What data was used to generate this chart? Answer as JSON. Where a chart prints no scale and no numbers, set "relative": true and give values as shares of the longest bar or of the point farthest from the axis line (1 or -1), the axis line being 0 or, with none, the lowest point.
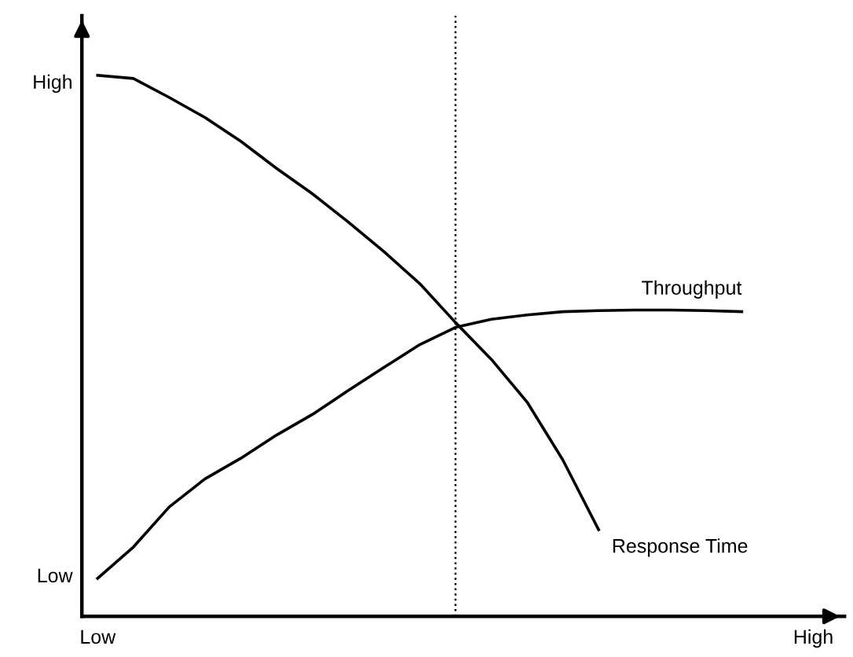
{
  "chart_data": {
    "type": "line",
    "relative": true,
    "categories": [
      "Low",
      null,
      null,
      null,
      null,
      null,
      null,
      null,
      null,
      null,
      null,
      null,
      null,
      null,
      null,
      null,
      null,
      null,
      null,
      null,
      "High"
    ],
    "annotations": [
      "High",
      "Low"
    ],
    "marker": "none",
    "line_style": "solid",
    "series": [
      {
        "name": "Response Time",
        "color": "#000000",
        "values": [
          1.0,
          0.994,
          0.959,
          0.922,
          0.878,
          0.828,
          0.781,
          0.729,
          0.674,
          0.615,
          0.543,
          0.475,
          0.396,
          0.289,
          0.16,
          null,
          null,
          null,
          null,
          null,
          null
        ]
      },
      {
        "name": "Throughput",
        "color": "#000000",
        "values": [
          0.07,
          0.128,
          0.202,
          0.254,
          0.292,
          0.335,
          0.373,
          0.417,
          0.46,
          0.502,
          0.534,
          0.549,
          0.557,
          0.563,
          0.565,
          0.566,
          0.566,
          0.565,
          0.563,
          null,
          null
        ]
      }
    ]
  }
}
